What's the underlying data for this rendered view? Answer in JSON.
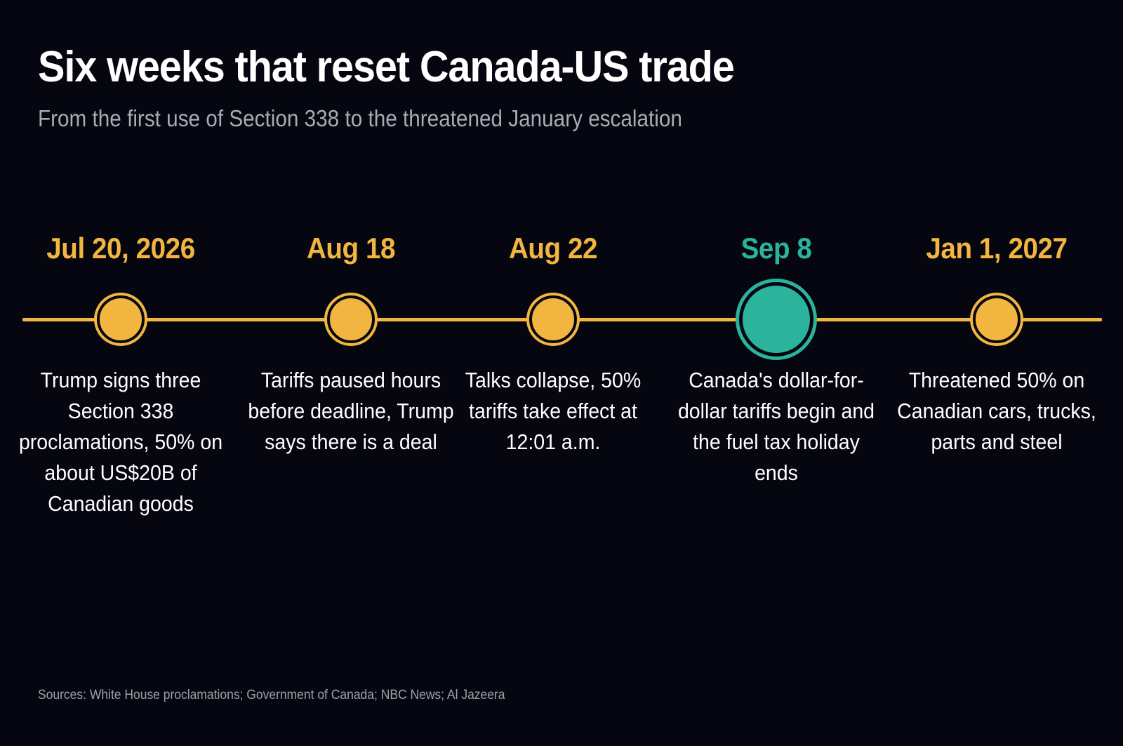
{
  "header": {
    "title": "Six weeks that reset Canada-US trade",
    "subtitle": "From the first use of Section 338 to the threatened January escalation"
  },
  "colors": {
    "background": "#05060f",
    "accent": "#f2b640",
    "highlight": "#2bb39c",
    "subtitle_text": "#a9acb4"
  },
  "timeline": {
    "events": [
      {
        "date": "Jul 20, 2026",
        "description": "Trump signs three Section 338 proclamations, 50% on about US$20B of Canadian goods",
        "highlight": false
      },
      {
        "date": "Aug 18",
        "description": "Tariffs paused hours before deadline, Trump says there is a deal",
        "highlight": false
      },
      {
        "date": "Aug 22",
        "description": "Talks collapse, 50% tariffs take effect at 12:01 a.m.",
        "highlight": false
      },
      {
        "date": "Sep 8",
        "description": "Canada's dollar-for-dollar tariffs begin and the fuel tax holiday ends",
        "highlight": true
      },
      {
        "date": "Jan 1, 2027",
        "description": "Threatened 50% on Canadian cars, trucks, parts and steel",
        "highlight": false
      }
    ]
  },
  "footer": {
    "sources": "Sources: White House proclamations; Government of Canada; NBC News; Al Jazeera"
  }
}
